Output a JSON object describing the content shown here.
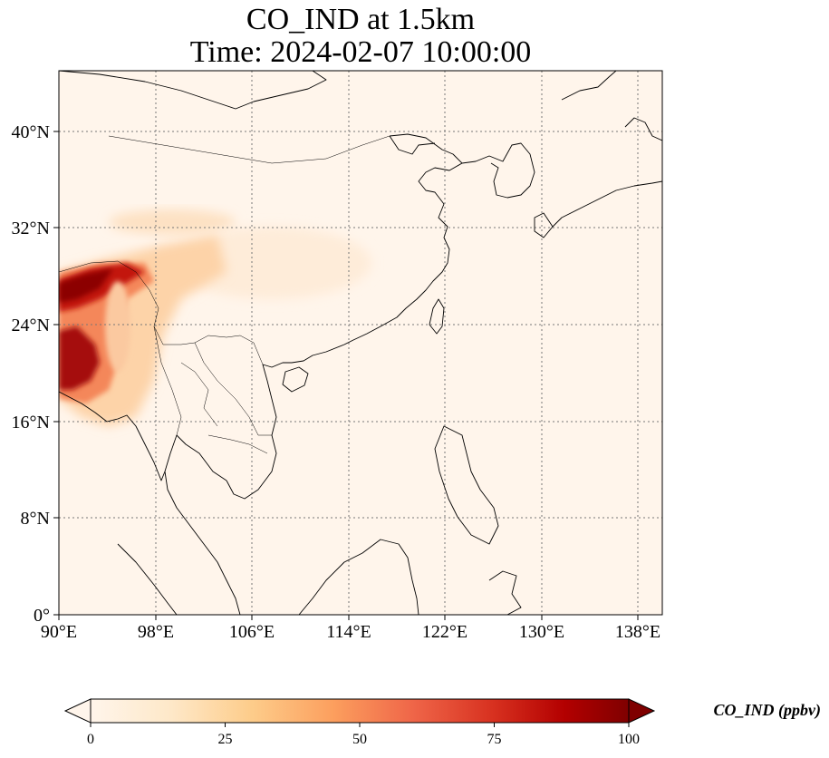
{
  "title": {
    "line1": "CO_IND at 1.5km",
    "line2": "Time: 2024-02-07 10:00:00"
  },
  "map": {
    "lon_range": [
      90,
      140
    ],
    "lat_range": [
      0,
      45
    ],
    "lon_ticks": [
      {
        "value": 90,
        "label": "90°E"
      },
      {
        "value": 98,
        "label": "98°E"
      },
      {
        "value": 106,
        "label": "106°E"
      },
      {
        "value": 114,
        "label": "114°E"
      },
      {
        "value": 122,
        "label": "122°E"
      },
      {
        "value": 130,
        "label": "130°E"
      },
      {
        "value": 138,
        "label": "138°E"
      }
    ],
    "lat_ticks": [
      {
        "value": 0,
        "label": "0°"
      },
      {
        "value": 8,
        "label": "8°N"
      },
      {
        "value": 16,
        "label": "16°N"
      },
      {
        "value": 24,
        "label": "24°N"
      },
      {
        "value": 32,
        "label": "32°N"
      },
      {
        "value": 40,
        "label": "40°N"
      }
    ],
    "gridlines": "dotted",
    "background_color": "#fff5eb",
    "coastline_color": "#000000"
  },
  "colorbar": {
    "colormap": "OrRd",
    "range": [
      0,
      100
    ],
    "extend": "both",
    "ticks": [
      {
        "value": 0,
        "label": "0"
      },
      {
        "value": 25,
        "label": "25"
      },
      {
        "value": 50,
        "label": "50"
      },
      {
        "value": 75,
        "label": "75"
      },
      {
        "value": 100,
        "label": "100"
      }
    ],
    "label": "CO_IND (ppbv)",
    "colors": [
      "#fff5eb",
      "#fee6ce",
      "#fdd0a2",
      "#fdae6b",
      "#fd8d3c",
      "#f16913",
      "#e5391f",
      "#c50f0f",
      "#9e0000",
      "#7f0000"
    ]
  }
}
